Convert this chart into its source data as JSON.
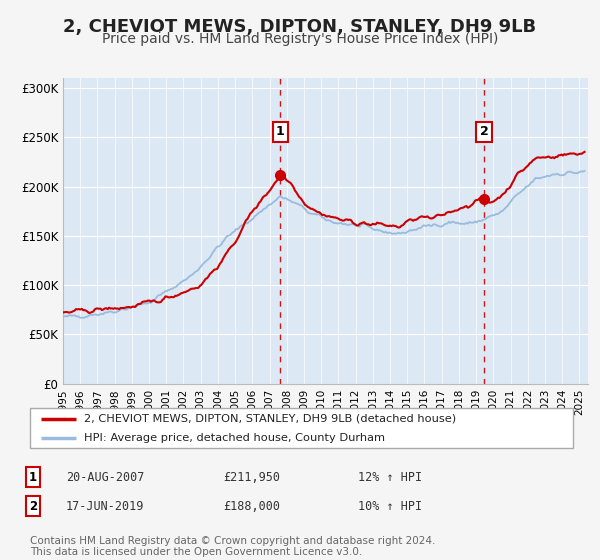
{
  "title": "2, CHEVIOT MEWS, DIPTON, STANLEY, DH9 9LB",
  "subtitle": "Price paid vs. HM Land Registry's House Price Index (HPI)",
  "title_fontsize": 13,
  "subtitle_fontsize": 10,
  "bg_color": "#f5f5f5",
  "plot_bg_color": "#dde8f5",
  "line1_color": "#cc0000",
  "line2_color": "#99bbdd",
  "marker_color": "#cc0000",
  "vline_color": "#cc0000",
  "grid_color": "#ffffff",
  "ylim": [
    0,
    310000
  ],
  "yticks": [
    0,
    50000,
    100000,
    150000,
    200000,
    250000,
    300000
  ],
  "ytick_labels": [
    "£0",
    "£50K",
    "£100K",
    "£150K",
    "£200K",
    "£250K",
    "£300K"
  ],
  "xmin": 1995.0,
  "xmax": 2025.5,
  "sale1_x": 2007.63,
  "sale1_y": 211950,
  "sale2_x": 2019.46,
  "sale2_y": 188000,
  "legend_label1": "2, CHEVIOT MEWS, DIPTON, STANLEY, DH9 9LB (detached house)",
  "legend_label2": "HPI: Average price, detached house, County Durham",
  "table_rows": [
    {
      "label": "1",
      "date": "20-AUG-2007",
      "price": "£211,950",
      "hpi": "12% ↑ HPI"
    },
    {
      "label": "2",
      "date": "17-JUN-2019",
      "price": "£188,000",
      "hpi": "10% ↑ HPI"
    }
  ],
  "footer": "Contains HM Land Registry data © Crown copyright and database right 2024.\nThis data is licensed under the Open Government Licence v3.0.",
  "footer_fontsize": 7.5,
  "hpi_waypoints": [
    [
      1995.0,
      67000
    ],
    [
      1997.5,
      72000
    ],
    [
      2000.0,
      82000
    ],
    [
      2002.5,
      110000
    ],
    [
      2004.5,
      148000
    ],
    [
      2006.5,
      175000
    ],
    [
      2007.6,
      190000
    ],
    [
      2008.5,
      183000
    ],
    [
      2009.5,
      172000
    ],
    [
      2010.5,
      165000
    ],
    [
      2011.5,
      162000
    ],
    [
      2012.5,
      159000
    ],
    [
      2013.5,
      155000
    ],
    [
      2014.5,
      152000
    ],
    [
      2015.5,
      157000
    ],
    [
      2016.5,
      161000
    ],
    [
      2017.5,
      164000
    ],
    [
      2018.5,
      162000
    ],
    [
      2019.5,
      167000
    ],
    [
      2020.5,
      174000
    ],
    [
      2021.5,
      193000
    ],
    [
      2022.5,
      208000
    ],
    [
      2023.5,
      213000
    ],
    [
      2025.3,
      215000
    ]
  ],
  "prop_waypoints": [
    [
      1995.0,
      72000
    ],
    [
      1997.0,
      75000
    ],
    [
      1999.0,
      78000
    ],
    [
      2000.5,
      84000
    ],
    [
      2001.5,
      90000
    ],
    [
      2003.0,
      100000
    ],
    [
      2004.5,
      130000
    ],
    [
      2006.0,
      175000
    ],
    [
      2007.0,
      197000
    ],
    [
      2007.63,
      211950
    ],
    [
      2008.3,
      203000
    ],
    [
      2009.0,
      184000
    ],
    [
      2009.8,
      174000
    ],
    [
      2010.8,
      168000
    ],
    [
      2011.8,
      164000
    ],
    [
      2012.8,
      162000
    ],
    [
      2013.8,
      161000
    ],
    [
      2014.5,
      159000
    ],
    [
      2015.0,
      164000
    ],
    [
      2015.8,
      169000
    ],
    [
      2016.5,
      167000
    ],
    [
      2017.0,
      171000
    ],
    [
      2017.8,
      177000
    ],
    [
      2018.5,
      181000
    ],
    [
      2019.46,
      188000
    ],
    [
      2019.8,
      184000
    ],
    [
      2020.5,
      191000
    ],
    [
      2021.5,
      214000
    ],
    [
      2022.5,
      229000
    ],
    [
      2023.5,
      231000
    ],
    [
      2024.5,
      233000
    ],
    [
      2025.3,
      235000
    ]
  ]
}
